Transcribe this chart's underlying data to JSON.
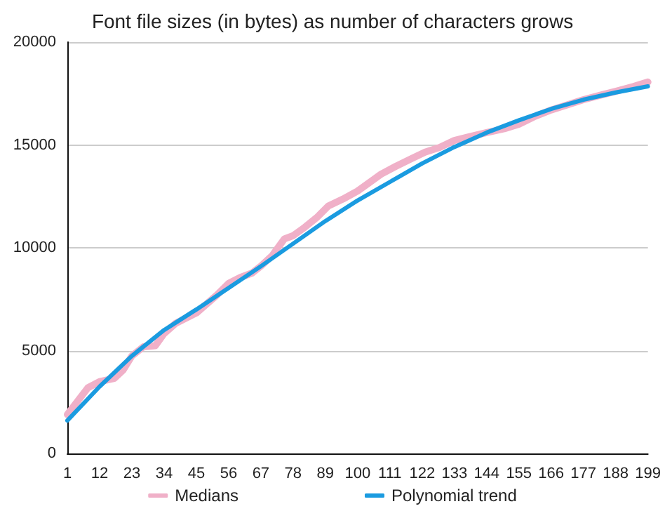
{
  "chart_data": {
    "type": "line",
    "title": "Font file sizes (in bytes) as number of characters grows",
    "xlim": [
      1,
      199
    ],
    "xticks": [
      1,
      12,
      23,
      34,
      45,
      56,
      67,
      78,
      89,
      100,
      111,
      122,
      133,
      144,
      155,
      166,
      177,
      188,
      199
    ],
    "ylim": [
      0,
      20000
    ],
    "yticks": [
      0,
      5000,
      10000,
      15000,
      20000
    ],
    "grid": "y",
    "legend": "bottom",
    "marker": "none",
    "line_style": "solid",
    "series": [
      {
        "name": "Medians",
        "color": "#f0b0c8",
        "x": [
          1,
          8,
          12,
          17,
          20,
          23,
          27,
          31,
          34,
          38,
          45,
          52,
          56,
          60,
          64,
          67,
          71,
          75,
          78,
          82,
          86,
          90,
          95,
          100,
          104,
          108,
          113,
          118,
          123,
          128,
          133,
          138,
          144,
          150,
          155,
          160,
          166,
          172,
          177,
          183,
          188,
          194,
          199
        ],
        "values": [
          1890,
          3190,
          3490,
          3650,
          4050,
          4740,
          5190,
          5240,
          5830,
          6330,
          6830,
          7700,
          8270,
          8560,
          8770,
          9110,
          9640,
          10430,
          10590,
          11000,
          11460,
          12030,
          12370,
          12760,
          13170,
          13580,
          13960,
          14310,
          14650,
          14880,
          15220,
          15400,
          15600,
          15790,
          16010,
          16360,
          16700,
          16970,
          17200,
          17430,
          17610,
          17840,
          18060
        ]
      },
      {
        "name": "Polynomial trend",
        "color": "#1a9be0",
        "x": [
          1,
          12,
          23,
          34,
          45,
          56,
          67,
          78,
          89,
          100,
          111,
          122,
          133,
          144,
          155,
          166,
          177,
          188,
          199
        ],
        "values": [
          1600,
          3250,
          4740,
          6000,
          7000,
          8050,
          9100,
          10200,
          11300,
          12300,
          13200,
          14100,
          14900,
          15600,
          16200,
          16750,
          17200,
          17550,
          17850
        ]
      }
    ]
  }
}
